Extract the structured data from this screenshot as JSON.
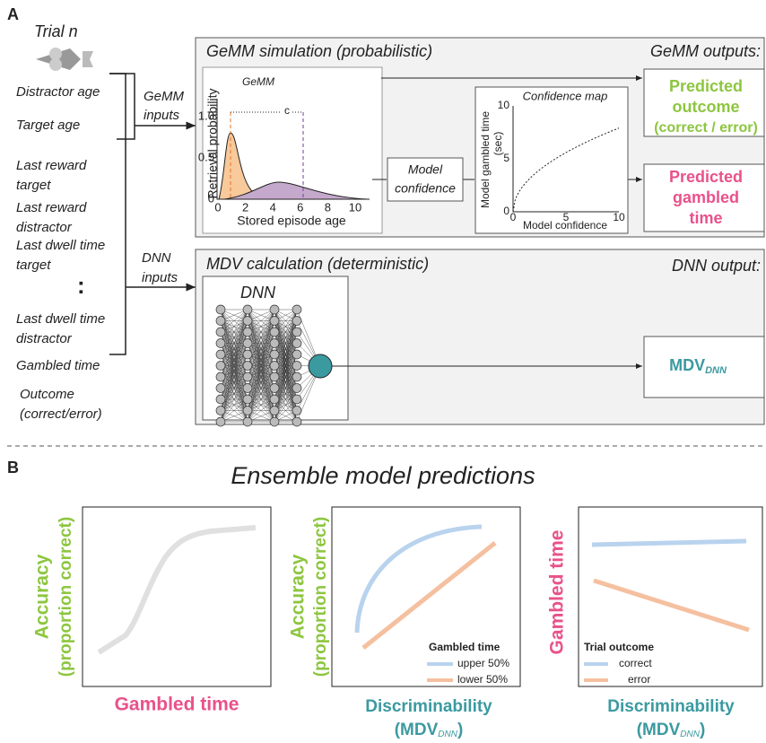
{
  "panel_a": {
    "label": "A",
    "trial": "Trial n",
    "inputs": [
      "Distractor age",
      "Target age",
      "Last reward",
      "target",
      "Last reward",
      "distractor",
      "Last dwell time",
      "target",
      "Last dwell time",
      "distractor",
      "Gambled time",
      "Outcome",
      "(correct/error)"
    ],
    "ellipsis": ":",
    "gemm_inputs": [
      "GeMM",
      "inputs"
    ],
    "dnn_inputs": [
      "DNN",
      "inputs"
    ],
    "gemm_box": {
      "title": "GeMM simulation (probabilistic)",
      "outputs_title": "GeMM outputs:",
      "plot": {
        "title": "GeMM",
        "ylabel": "Retrieval probability",
        "xlabel": "Stored episode age",
        "xticks": [
          "0",
          "2",
          "4",
          "6",
          "8",
          "10"
        ],
        "yticks": [
          "0",
          "0.5",
          "1.0"
        ],
        "c": "c"
      },
      "confidence": [
        "Model",
        "confidence"
      ],
      "map": {
        "title": "Confidence map",
        "ylabel": [
          "Model gambled time",
          "(sec)"
        ],
        "xlabel": "Model confidence",
        "xticks": [
          "0",
          "5",
          "10"
        ],
        "yticks": [
          "0",
          "5",
          "10"
        ]
      },
      "output1": [
        "Predicted",
        "outcome",
        "(correct / error)"
      ],
      "output2": [
        "Predicted",
        "gambled",
        "time"
      ]
    },
    "dnn_box": {
      "title": "MDV calculation (deterministic)",
      "outputs_title": "DNN output:",
      "net": "DNN",
      "output": {
        "main": "MDV",
        "sub": "DNN"
      }
    }
  },
  "panel_b": {
    "label": "B",
    "title": "Ensemble model predictions",
    "plot1": {
      "ylabel": [
        "Accuracy",
        "(proportion correct)"
      ],
      "xlabel": "Gambled time"
    },
    "plot2": {
      "ylabel": [
        "Accuracy",
        "(proportion correct)"
      ],
      "xlabel": "Discriminability",
      "xlabel2": {
        "main": "(MDV",
        "sub": "DNN",
        "end": ")"
      },
      "legend_title": "Gambled time",
      "legend": [
        "upper 50%",
        "lower 50%"
      ]
    },
    "plot3": {
      "ylabel": "Gambled time",
      "xlabel": "Discriminability",
      "xlabel2": {
        "main": "(MDV",
        "sub": "DNN",
        "end": ")"
      },
      "legend_title": "Trial outcome",
      "legend": [
        "correct",
        "error"
      ]
    }
  }
}
